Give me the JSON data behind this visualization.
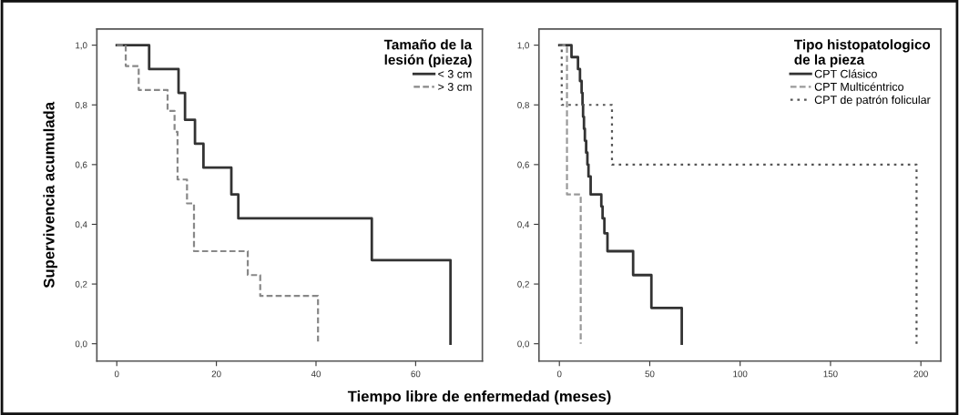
{
  "chart_data": [
    {
      "type": "step",
      "ylabel": "Supervivencia acumulada",
      "xlabel": "Tiempo libre de enfermedad (meses)",
      "legend_title": "Tamaño de la\nlesión (pieza)",
      "legend": "top right",
      "grid": false,
      "xlim": [
        -4,
        73.4
      ],
      "ylim": [
        -0.058,
        1.054
      ],
      "xticks": [
        0,
        20,
        40,
        60
      ],
      "yticks": [
        {
          "value": 0,
          "label": "0,0"
        },
        {
          "value": 0.2,
          "label": "0,2"
        },
        {
          "value": 0.4,
          "label": "0,4"
        },
        {
          "value": 0.6,
          "label": "0,6"
        },
        {
          "value": 0.8,
          "label": "0,8"
        },
        {
          "value": 1.0,
          "label": "1,0"
        }
      ],
      "series": [
        {
          "name": "< 3 cm",
          "color": "#333333",
          "line_style": "solid",
          "x": [
            0,
            6.5,
            12.4,
            13.7,
            15.7,
            17.4,
            23,
            24.4,
            51.2,
            67
          ],
          "values": [
            1.0,
            0.92,
            0.84,
            0.75,
            0.67,
            0.59,
            0.5,
            0.42,
            0.28,
            0
          ]
        },
        {
          "name": "> 3 cm",
          "color": "#888888",
          "line_style": "dashed",
          "x": [
            0,
            1.8,
            4.4,
            10.2,
            11.6,
            12.2,
            14.1,
            15.5,
            26.3,
            28.8,
            40.4
          ],
          "values": [
            1.0,
            0.93,
            0.85,
            0.78,
            0.71,
            0.55,
            0.47,
            0.31,
            0.23,
            0.16,
            0
          ]
        }
      ]
    },
    {
      "type": "step",
      "legend_title": "Tipo histopatologico\nde la pieza",
      "legend": "top right",
      "grid": false,
      "xlim": [
        -11.3,
        211
      ],
      "ylim": [
        -0.058,
        1.054
      ],
      "xticks": [
        0,
        50,
        100,
        150,
        200
      ],
      "yticks": [
        {
          "value": 0,
          "label": "0,0"
        },
        {
          "value": 0.2,
          "label": "0,2"
        },
        {
          "value": 0.4,
          "label": "0,4"
        },
        {
          "value": 0.6,
          "label": "0,6"
        },
        {
          "value": 0.8,
          "label": "0,8"
        },
        {
          "value": 1.0,
          "label": "1,0"
        }
      ],
      "series": [
        {
          "name": "CPT Clásico",
          "color": "#333333",
          "line_style": "solid",
          "x": [
            0,
            6.7,
            10.3,
            11.4,
            12.3,
            12.8,
            13.1,
            13.6,
            14.1,
            14.8,
            15.5,
            16.1,
            17.3,
            23.2,
            23.9,
            24.9,
            26.6,
            40.8,
            50.9,
            67.7
          ],
          "values": [
            1.0,
            0.96,
            0.92,
            0.88,
            0.84,
            0.8,
            0.76,
            0.72,
            0.68,
            0.64,
            0.6,
            0.56,
            0.5,
            0.46,
            0.42,
            0.37,
            0.31,
            0.23,
            0.12,
            0
          ]
        },
        {
          "name": "CPT Multicéntrico",
          "color": "#999999",
          "line_style": "dashed",
          "x": [
            0,
            4.2,
            11.8
          ],
          "values": [
            1.0,
            0.5,
            0
          ]
        },
        {
          "name": "CPT de patrón folicular",
          "color": "#555555",
          "line_style": "dotted",
          "x": [
            0,
            1.3,
            29.1,
            197.6
          ],
          "values": [
            1.0,
            0.8,
            0.6,
            0
          ]
        }
      ]
    }
  ]
}
